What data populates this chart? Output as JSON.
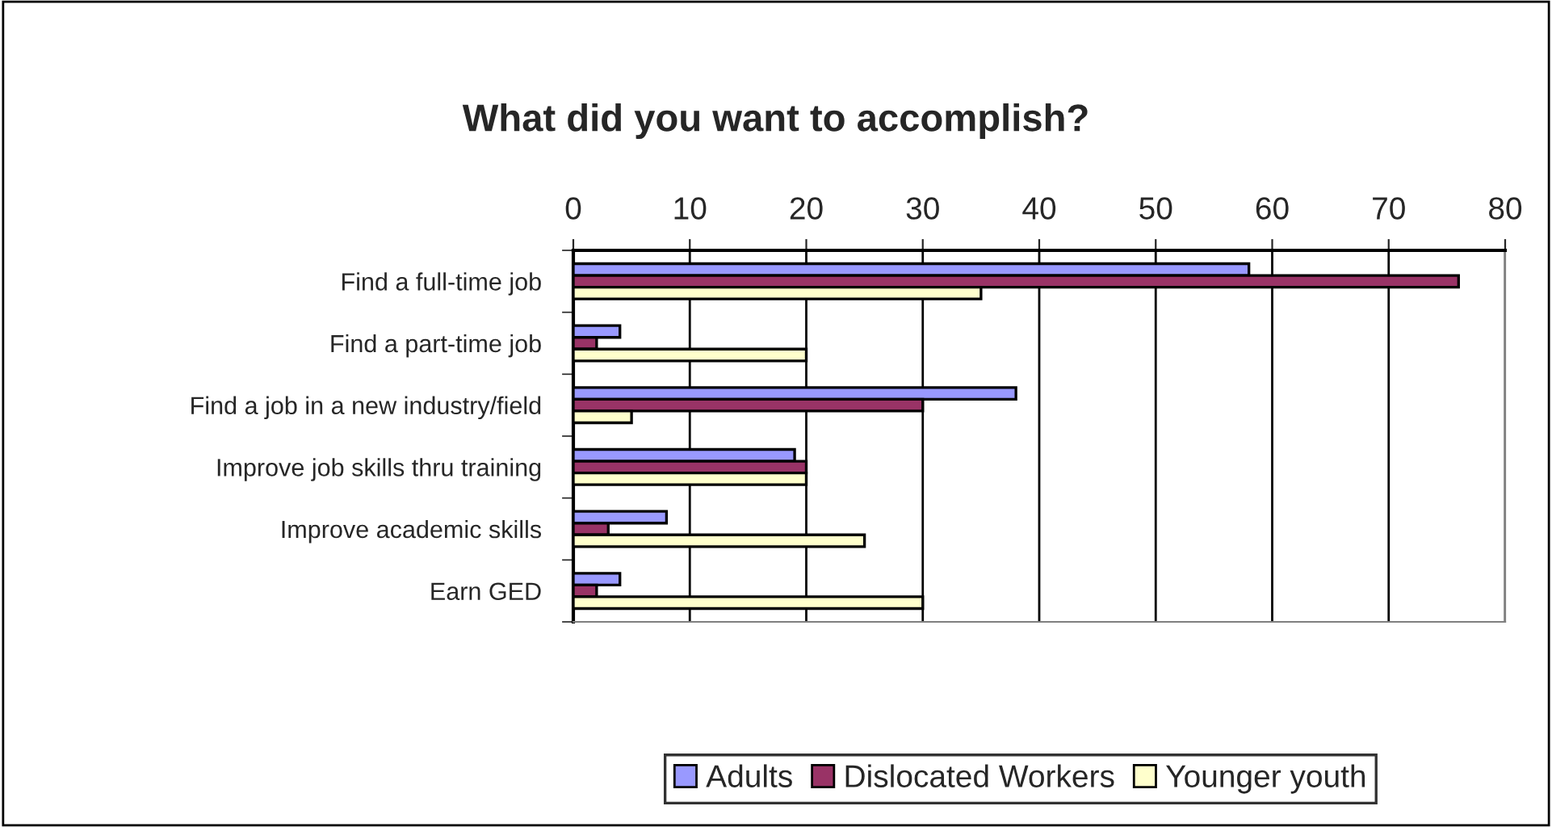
{
  "chart_data": {
    "type": "bar",
    "orientation": "horizontal",
    "title": "What did you want to accomplish?",
    "categories": [
      "Find a full-time job",
      "Find a part-time job",
      "Find a job in a new industry/field",
      "Improve job skills thru training",
      "Improve academic skills",
      "Earn GED"
    ],
    "series": [
      {
        "name": "Adults",
        "color": "#9999ff",
        "values": [
          58,
          4,
          38,
          19,
          8,
          4
        ]
      },
      {
        "name": "Dislocated Workers",
        "color": "#993366",
        "values": [
          76,
          2,
          30,
          20,
          3,
          2
        ]
      },
      {
        "name": "Younger youth",
        "color": "#ffffcc",
        "values": [
          35,
          20,
          5,
          20,
          25,
          30
        ]
      }
    ],
    "xlim": [
      0,
      80
    ],
    "xticks": [
      0,
      10,
      20,
      30,
      40,
      50,
      60,
      70,
      80
    ],
    "grid": "x",
    "legend": "bottom"
  }
}
